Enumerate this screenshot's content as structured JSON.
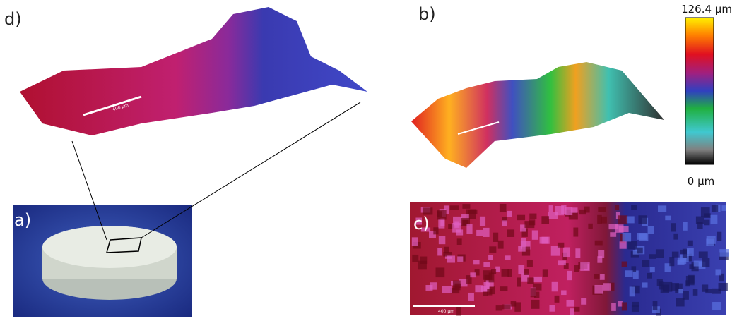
{
  "panels": {
    "d": {
      "label": "d)",
      "scale_bar": "400 µm"
    },
    "b": {
      "label": "b)"
    },
    "a": {
      "label": "a)"
    },
    "c": {
      "label": "c)",
      "scale_bar": "400 µm"
    }
  },
  "colorbar": {
    "max_label": "126.4 µm",
    "min_label": "0 µm"
  }
}
